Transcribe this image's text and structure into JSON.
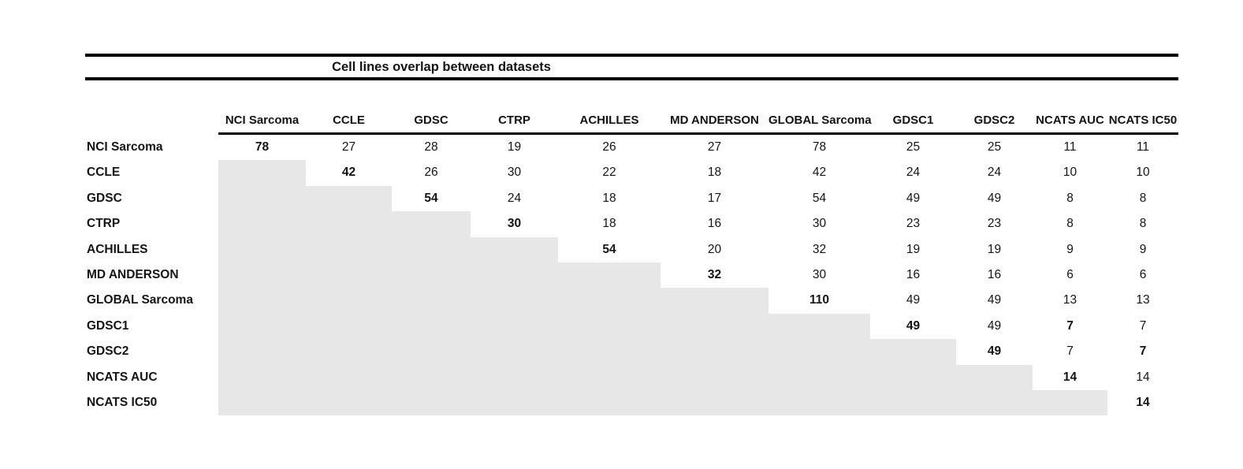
{
  "title": "Cell lines overlap between datasets",
  "colors": {
    "background": "#ffffff",
    "shaded_cell": "#e7e7e7",
    "rule": "#000000",
    "text": "#141414"
  },
  "chart_data": {
    "type": "table",
    "title": "Cell lines overlap between datasets",
    "col_labels": [
      "NCI Sarcoma",
      "CCLE",
      "GDSC",
      "CTRP",
      "ACHILLES",
      "MD ANDERSON",
      "GLOBAL Sarcoma",
      "GDSC1",
      "GDSC2",
      "NCATS AUC",
      "NCATS IC50"
    ],
    "row_labels": [
      "NCI Sarcoma",
      "CCLE",
      "GDSC",
      "CTRP",
      "ACHILLES",
      "MD ANDERSON",
      "GLOBAL Sarcoma",
      "GDSC1",
      "GDSC2",
      "NCATS AUC",
      "NCATS IC50"
    ],
    "matrix": [
      [
        78,
        27,
        28,
        19,
        26,
        27,
        78,
        25,
        25,
        11,
        11
      ],
      [
        null,
        42,
        26,
        30,
        22,
        18,
        42,
        24,
        24,
        10,
        10
      ],
      [
        null,
        null,
        54,
        24,
        18,
        17,
        54,
        49,
        49,
        8,
        8
      ],
      [
        null,
        null,
        null,
        30,
        18,
        16,
        30,
        23,
        23,
        8,
        8
      ],
      [
        null,
        null,
        null,
        null,
        54,
        20,
        32,
        19,
        19,
        9,
        9
      ],
      [
        null,
        null,
        null,
        null,
        null,
        32,
        30,
        16,
        16,
        6,
        6
      ],
      [
        null,
        null,
        null,
        null,
        null,
        null,
        110,
        49,
        49,
        13,
        13
      ],
      [
        null,
        null,
        null,
        null,
        null,
        null,
        null,
        49,
        49,
        7,
        7
      ],
      [
        null,
        null,
        null,
        null,
        null,
        null,
        null,
        null,
        49,
        7,
        7
      ],
      [
        null,
        null,
        null,
        null,
        null,
        null,
        null,
        null,
        null,
        14,
        14
      ],
      [
        null,
        null,
        null,
        null,
        null,
        null,
        null,
        null,
        null,
        null,
        14
      ]
    ],
    "bold_cells": [
      [
        0,
        0
      ],
      [
        1,
        1
      ],
      [
        2,
        2
      ],
      [
        3,
        3
      ],
      [
        4,
        4
      ],
      [
        5,
        5
      ],
      [
        6,
        6
      ],
      [
        7,
        7
      ],
      [
        7,
        9
      ],
      [
        8,
        8
      ],
      [
        8,
        10
      ],
      [
        9,
        9
      ],
      [
        10,
        10
      ]
    ],
    "shaded_region": "lower-triangle",
    "layout_hints": {
      "grid": "off",
      "lower_triangle_fill": "light-gray",
      "diagonal": "bold"
    }
  }
}
